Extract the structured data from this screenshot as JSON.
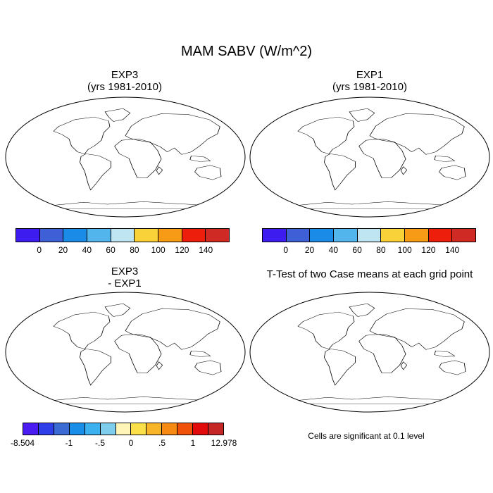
{
  "title": "MAM SABV (W/m^2)",
  "panels": [
    {
      "id": "exp3",
      "title_line1": "EXP3",
      "title_line2": "(yrs 1981-2010)"
    },
    {
      "id": "exp1",
      "title_line1": "EXP1",
      "title_line2": "(yrs 1981-2010)"
    },
    {
      "id": "diff",
      "title_line1": "EXP3",
      "title_line2": "- EXP1"
    },
    {
      "id": "ttest",
      "title_line1": "T-Test of two Case means at each grid point",
      "title_line2": ""
    }
  ],
  "colorbar_main": {
    "colors": [
      "#3d1cf0",
      "#3e5fd6",
      "#1b8be8",
      "#52b6ec",
      "#bfe4f2",
      "#f9d23a",
      "#f79a16",
      "#ee1e0c",
      "#cf2a24"
    ],
    "labels": [
      "0",
      "20",
      "40",
      "60",
      "80",
      "100",
      "120",
      "140"
    ]
  },
  "colorbar_diff": {
    "colors": [
      "#4a1cf2",
      "#2e3ee8",
      "#3c6ad4",
      "#198ee8",
      "#3cb1f0",
      "#7fcdec",
      "#fff5b8",
      "#fbe04a",
      "#f9b52a",
      "#f68a12",
      "#f0520a",
      "#e20b0b",
      "#c52626"
    ],
    "labels": [
      "-8.504",
      "-1",
      "-.5",
      "0",
      ".5",
      "1",
      "12.978"
    ]
  },
  "significance_note": "Cells are significant at 0.1 level",
  "significance_color": "#ff0000",
  "map_style": {
    "ocean": "#ffffff",
    "coastline": "#000000",
    "projection": "Robinson"
  }
}
